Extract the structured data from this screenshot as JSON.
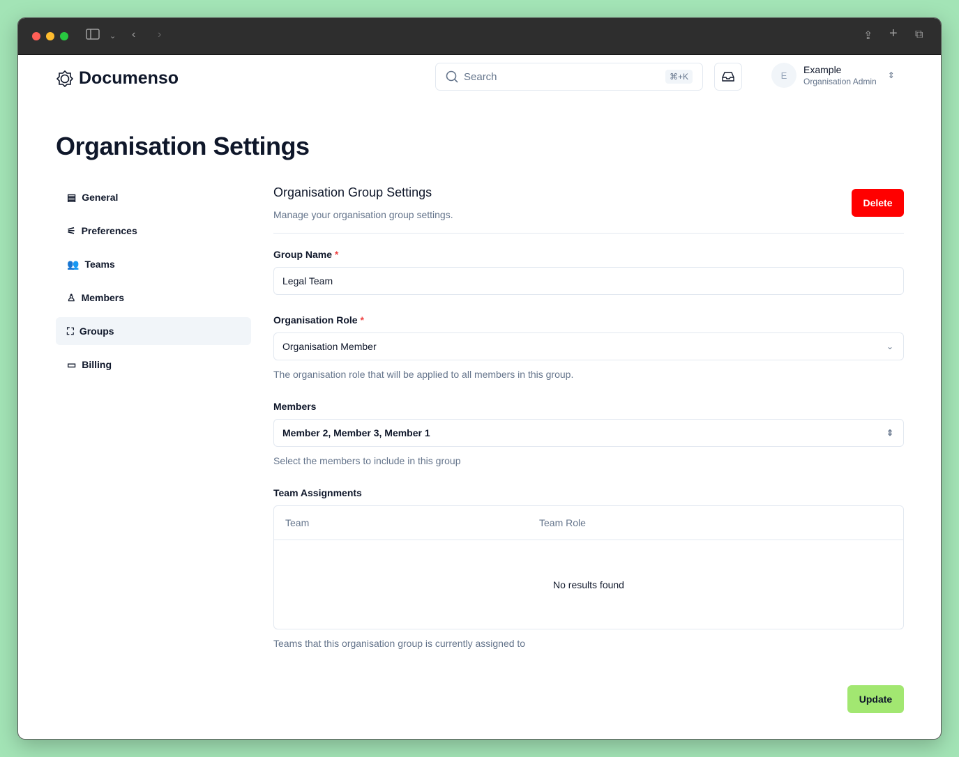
{
  "header": {
    "brand": "Documenso",
    "search_placeholder": "Search",
    "search_shortcut": "⌘+K",
    "user_initial": "E",
    "user_name": "Example",
    "user_role": "Organisation Admin"
  },
  "page_title": "Organisation Settings",
  "sidebar": {
    "items": [
      {
        "label": "General",
        "icon": "building-icon"
      },
      {
        "label": "Preferences",
        "icon": "sliders-icon"
      },
      {
        "label": "Teams",
        "icon": "users-icon"
      },
      {
        "label": "Members",
        "icon": "user-group-icon"
      },
      {
        "label": "Groups",
        "icon": "group-icon",
        "active": true
      },
      {
        "label": "Billing",
        "icon": "credit-card-icon"
      }
    ]
  },
  "section": {
    "title": "Organisation Group Settings",
    "description": "Manage your organisation group settings.",
    "delete_label": "Delete"
  },
  "form": {
    "group_name_label": "Group Name",
    "group_name_value": "Legal Team",
    "role_label": "Organisation Role",
    "role_value": "Organisation Member",
    "role_help": "The organisation role that will be applied to all members in this group.",
    "members_label": "Members",
    "members_value": "Member 2, Member 3, Member 1",
    "members_help": "Select the members to include in this group",
    "teams_label": "Team Assignments",
    "teams_columns": [
      "Team",
      "Team Role"
    ],
    "teams_empty": "No results found",
    "teams_help": "Teams that this organisation group is currently assigned to",
    "required_mark": "*",
    "update_label": "Update"
  },
  "colors": {
    "delete": "#ff0000",
    "update": "#a2e771",
    "background": "#a3e4b6"
  }
}
